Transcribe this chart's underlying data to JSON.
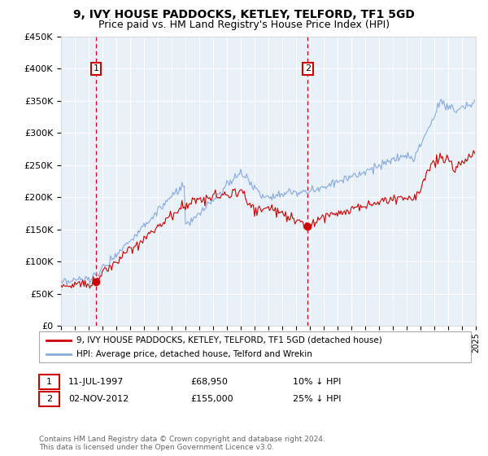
{
  "title": "9, IVY HOUSE PADDOCKS, KETLEY, TELFORD, TF1 5GD",
  "subtitle": "Price paid vs. HM Land Registry's House Price Index (HPI)",
  "legend_line1": "9, IVY HOUSE PADDOCKS, KETLEY, TELFORD, TF1 5GD (detached house)",
  "legend_line2": "HPI: Average price, detached house, Telford and Wrekin",
  "annotation1_date": "11-JUL-1997",
  "annotation1_price": "£68,950",
  "annotation1_hpi": "10% ↓ HPI",
  "annotation2_date": "02-NOV-2012",
  "annotation2_price": "£155,000",
  "annotation2_hpi": "25% ↓ HPI",
  "footnote": "Contains HM Land Registry data © Crown copyright and database right 2024.\nThis data is licensed under the Open Government Licence v3.0.",
  "sale1_x": 1997.53,
  "sale1_y": 68950,
  "sale2_x": 2012.84,
  "sale2_y": 155000,
  "ylim": [
    0,
    450000
  ],
  "xlim": [
    1995,
    2025
  ],
  "yticks": [
    0,
    50000,
    100000,
    150000,
    200000,
    250000,
    300000,
    350000,
    400000,
    450000
  ],
  "red_color": "#cc0000",
  "blue_color": "#88aadd",
  "plot_bg": "#e8f0f8",
  "grid_color": "#ffffff",
  "marker_color": "#cc0000",
  "vline_color": "#cc0000",
  "box_edge_color": "#cc0000",
  "legend_edge_color": "#aaaaaa",
  "footnote_color": "#666666",
  "title_fontsize": 10,
  "subtitle_fontsize": 9
}
